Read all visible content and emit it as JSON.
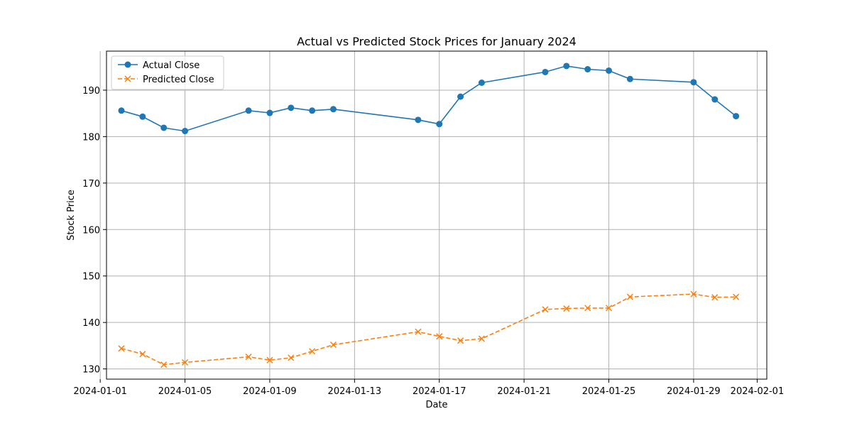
{
  "chart_data": {
    "type": "line",
    "title": "Actual vs Predicted Stock Prices for January 2024",
    "xlabel": "Date",
    "ylabel": "Stock Price",
    "xlim": [
      "2024-01-01T07:07",
      "2024-02-01T10:53"
    ],
    "ylim": [
      127.8,
      198.4
    ],
    "x_ticks": [
      "2024-01-01",
      "2024-01-05",
      "2024-01-09",
      "2024-01-13",
      "2024-01-17",
      "2024-01-21",
      "2024-01-25",
      "2024-01-29",
      "2024-02-01"
    ],
    "y_ticks": [
      130,
      140,
      150,
      160,
      170,
      180,
      190
    ],
    "grid": true,
    "legend": "top-left",
    "x": [
      "2024-01-02",
      "2024-01-03",
      "2024-01-04",
      "2024-01-05",
      "2024-01-08",
      "2024-01-09",
      "2024-01-10",
      "2024-01-11",
      "2024-01-12",
      "2024-01-16",
      "2024-01-17",
      "2024-01-18",
      "2024-01-19",
      "2024-01-22",
      "2024-01-23",
      "2024-01-24",
      "2024-01-25",
      "2024-01-26",
      "2024-01-29",
      "2024-01-30",
      "2024-01-31"
    ],
    "series": [
      {
        "name": "Actual Close",
        "color": "#1f77b4",
        "marker": "circle",
        "line_style": "solid",
        "values": [
          185.6,
          184.3,
          181.9,
          181.2,
          185.6,
          185.1,
          186.2,
          185.6,
          185.9,
          183.6,
          182.7,
          188.6,
          191.6,
          193.9,
          195.2,
          194.5,
          194.2,
          192.4,
          191.7,
          188.0,
          184.4
        ]
      },
      {
        "name": "Predicted Close",
        "color": "#ff7f0e",
        "marker": "x",
        "line_style": "dashed",
        "values": [
          134.4,
          133.2,
          130.9,
          131.4,
          132.6,
          131.9,
          132.4,
          133.8,
          135.2,
          138.0,
          137.0,
          136.1,
          136.5,
          142.8,
          143.0,
          143.1,
          143.1,
          145.5,
          146.1,
          145.4,
          145.5
        ]
      }
    ]
  }
}
